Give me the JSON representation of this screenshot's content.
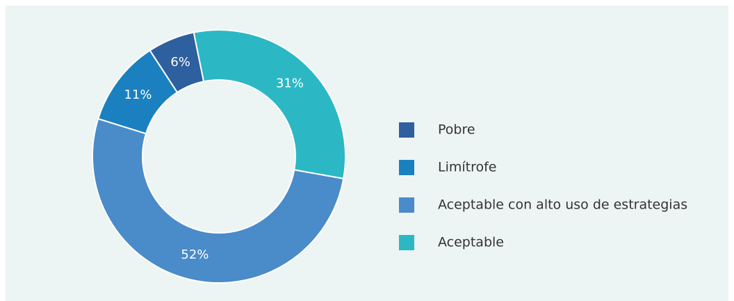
{
  "chart_data": {
    "type": "donut",
    "categories": [
      "Pobre",
      "Limítrofe",
      "Aceptable con alto uso de estrategias",
      "Aceptable"
    ],
    "values": [
      6,
      11,
      52,
      31
    ],
    "value_labels": [
      "6%",
      "11%",
      "52%",
      "31%"
    ],
    "colors": [
      "#2e5f9e",
      "#1a80c0",
      "#4a8bc9",
      "#2bb8c4"
    ],
    "legend": "right"
  }
}
